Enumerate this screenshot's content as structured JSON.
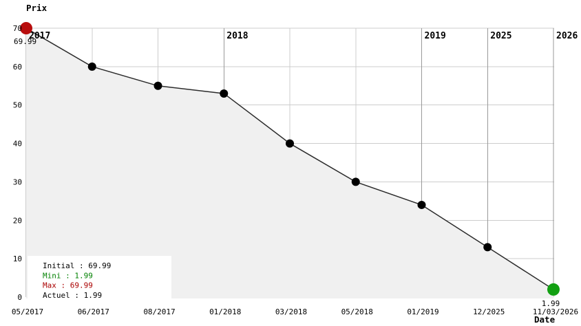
{
  "chart_data": {
    "type": "line",
    "title": "",
    "ylabel": "Prix",
    "xlabel": "Date",
    "categories": [
      "05/2017",
      "06/2017",
      "08/2017",
      "01/2018",
      "03/2018",
      "05/2018",
      "01/2019",
      "12/2025",
      "11/03/2026"
    ],
    "values": [
      69.99,
      60,
      55,
      53,
      40,
      30,
      24,
      13,
      1.99
    ],
    "y_ticks": [
      0,
      10,
      20,
      30,
      40,
      50,
      60,
      70
    ],
    "ylim": [
      0,
      70
    ],
    "grid": true,
    "year_labels": [
      {
        "text": "2017",
        "index": 0
      },
      {
        "text": "2018",
        "index": 3
      },
      {
        "text": "2019",
        "index": 6
      },
      {
        "text": "2025",
        "index": 7
      },
      {
        "text": "2026",
        "index": 8
      }
    ],
    "start_point": {
      "value_label": "69.99"
    },
    "end_point": {
      "value_label": "1.99"
    }
  },
  "legend": {
    "items": [
      {
        "text": "Initial : 69.99",
        "color": "#000000"
      },
      {
        "text": "Mini : 1.99",
        "color": "#008000"
      },
      {
        "text": "Max : 69.99",
        "color": "#aa0000"
      },
      {
        "text": "Actuel : 1.99",
        "color": "#000000"
      }
    ]
  },
  "colors": {
    "line": "#2b2b2b",
    "fill": "#f0f0f0",
    "grid_minor": "#cccccc",
    "grid_major": "#999999",
    "dot": "#000000",
    "max_dot": "#b80d0d",
    "min_dot": "#12a012",
    "max_text": "#aa0000",
    "min_text": "#008000",
    "legend_bg": "#ffffff"
  }
}
